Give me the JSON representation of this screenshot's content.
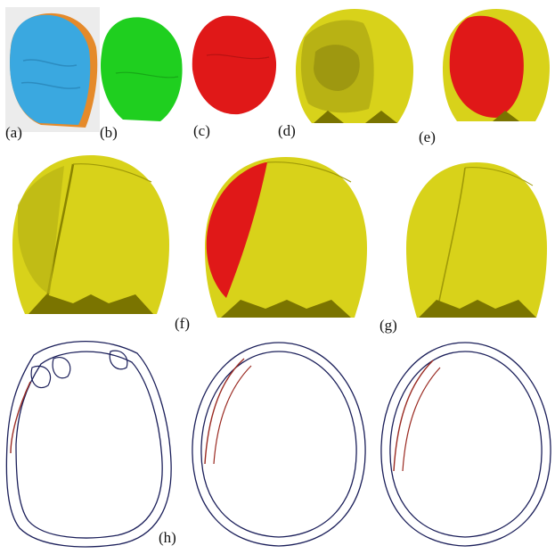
{
  "figure": {
    "labels": {
      "a": "(a)",
      "b": "(b)",
      "c": "(c)",
      "d": "(d)",
      "e": "(e)",
      "f": "(f)",
      "g": "(g)",
      "h": "(h)"
    },
    "colors": {
      "blue_implant": "#3aa8e0",
      "orange_rim": "#e58a2a",
      "green_implant": "#1fcf1f",
      "red_implant": "#e01818",
      "skull_yellow": "#d8d21a",
      "skull_shadow": "#8a8400",
      "contour_navy": "#1b1f5a",
      "contour_red": "#9a2a22"
    }
  }
}
